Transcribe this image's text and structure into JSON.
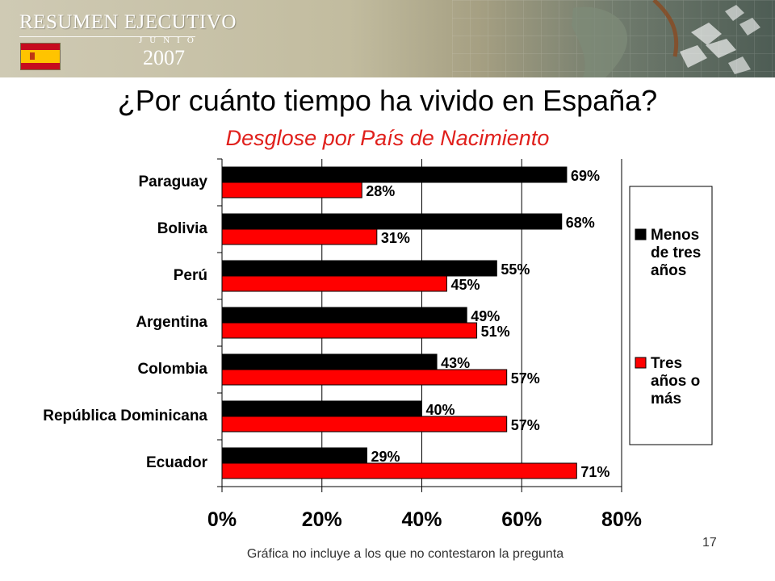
{
  "banner": {
    "title": "RESUMEN EJECUTIVO",
    "month": "JUNIO",
    "year": "2007",
    "flag_colors": {
      "red": "#c60b1e",
      "yellow": "#ffc400"
    }
  },
  "slide": {
    "title": "¿Por cuánto tiempo ha vivido en España?",
    "subtitle": "Desglose por País de Nacimiento",
    "footnote": "Gráfica no incluye a los que no contestaron la pregunta",
    "page_number": "17"
  },
  "chart_data": {
    "type": "bar",
    "orientation": "horizontal",
    "categories": [
      "Paraguay",
      "Bolivia",
      "Perú",
      "Argentina",
      "Colombia",
      "República Dominicana",
      "Ecuador"
    ],
    "series": [
      {
        "name": "Menos de tres años",
        "color": "#000000",
        "values": [
          69,
          68,
          55,
          49,
          43,
          40,
          29
        ],
        "labels": [
          "69%",
          "68%",
          "55%",
          "49%",
          "43%",
          "40%",
          "29%"
        ]
      },
      {
        "name": "Tres años o más",
        "color": "#ff0000",
        "values": [
          28,
          31,
          45,
          51,
          57,
          57,
          71
        ],
        "labels": [
          "28%",
          "31%",
          "45%",
          "51%",
          "57%",
          "57%",
          "71%"
        ]
      }
    ],
    "xlim": [
      0,
      80
    ],
    "xticks": [
      0,
      20,
      40,
      60,
      80
    ],
    "xtick_labels": [
      "0%",
      "20%",
      "40%",
      "60%",
      "80%"
    ],
    "grid": true,
    "legend_position": "right",
    "legend_lines": [
      [
        "Menos",
        "de tres",
        "años"
      ],
      [
        "Tres",
        "años o",
        "más"
      ]
    ]
  }
}
